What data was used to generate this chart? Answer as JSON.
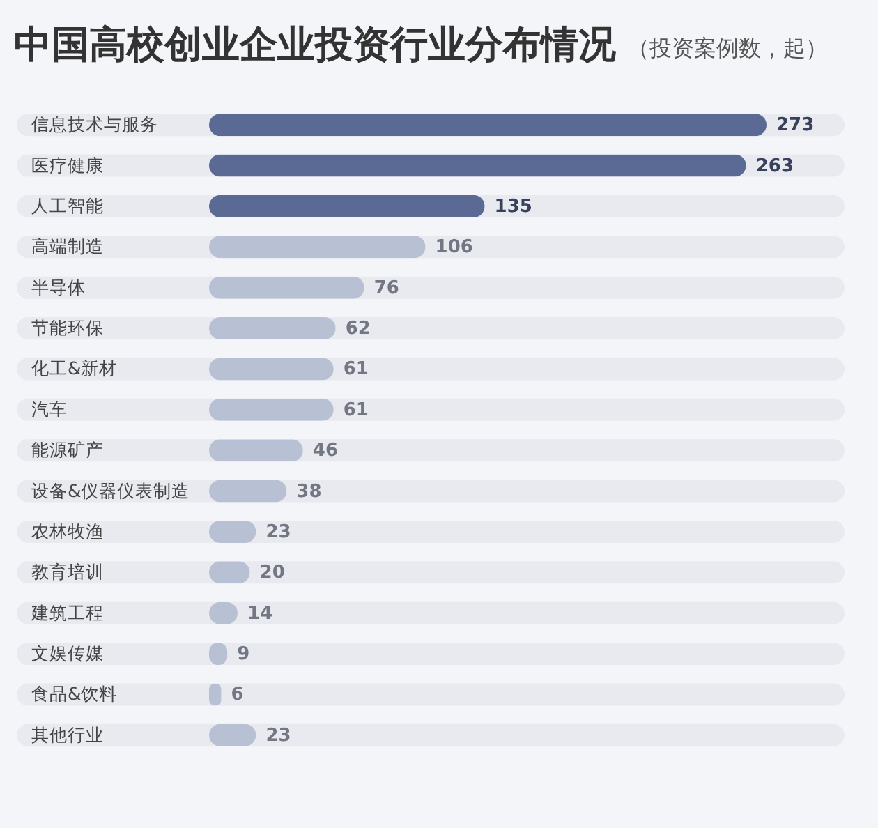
{
  "chart_data": {
    "type": "bar",
    "orientation": "horizontal",
    "title": "中国高校创业企业投资行业分布情况",
    "subtitle": "（投资案例数，起）",
    "categories": [
      "信息技术与服务",
      "医疗健康",
      "人工智能",
      "高端制造",
      "半导体",
      "节能环保",
      "化工&新材",
      "汽车",
      "能源矿产",
      "设备&仪器仪表制造",
      "农林牧渔",
      "教育培训",
      "建筑工程",
      "文娱传媒",
      "食品&饮料",
      "其他行业"
    ],
    "values": [
      273,
      263,
      135,
      106,
      76,
      62,
      61,
      61,
      46,
      38,
      23,
      20,
      14,
      9,
      6,
      23
    ],
    "colors": [
      "#5a6a94",
      "#5a6a94",
      "#5a6a94",
      "#b8c1d4",
      "#b8c1d4",
      "#b8c1d4",
      "#b8c1d4",
      "#b8c1d4",
      "#b8c1d4",
      "#b8c1d4",
      "#b8c1d4",
      "#b8c1d4",
      "#b8c1d4",
      "#b8c1d4",
      "#b8c1d4",
      "#b8c1d4"
    ],
    "data_labels": true
  }
}
